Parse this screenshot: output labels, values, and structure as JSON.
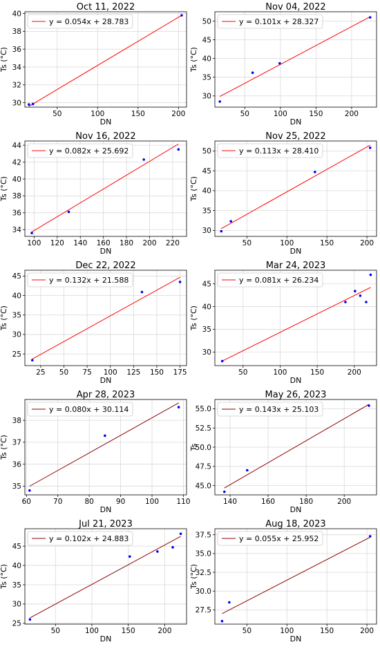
{
  "chart_data": [
    {
      "type": "scatter",
      "title": "Oct 11, 2022",
      "xlabel": "DN",
      "ylabel": "Ts (°C)",
      "xlim": [
        10,
        210
      ],
      "ylim": [
        29.5,
        40.2
      ],
      "xticks": [
        50,
        100,
        150,
        200
      ],
      "yticks": [
        30,
        32,
        34,
        36,
        38,
        40
      ],
      "points": [
        [
          15,
          29.8
        ],
        [
          20,
          29.85
        ],
        [
          204,
          39.8
        ]
      ],
      "fit": {
        "label": "y = 0.054x + 28.783",
        "slope": 0.054,
        "intercept": 28.783,
        "x_range": [
          15,
          204
        ],
        "color": "#ff0000"
      },
      "grid": true,
      "legend": "top-left"
    },
    {
      "type": "scatter",
      "title": "Nov 04, 2022",
      "xlabel": "DN",
      "ylabel": "Ts (°C)",
      "xlim": [
        8,
        235
      ],
      "ylim": [
        27,
        52.5
      ],
      "xticks": [
        50,
        100,
        150,
        200
      ],
      "yticks": [
        30,
        35,
        40,
        45,
        50
      ],
      "points": [
        [
          15,
          28.5
        ],
        [
          61,
          36.2
        ],
        [
          99,
          38.7
        ],
        [
          226,
          51.0
        ]
      ],
      "fit": {
        "label": "y = 0.101x + 28.327",
        "slope": 0.101,
        "intercept": 28.327,
        "x_range": [
          15,
          226
        ],
        "color": "#ff0000"
      },
      "grid": true,
      "legend": "top-left"
    },
    {
      "type": "scatter",
      "title": "Nov 16, 2022",
      "xlabel": "DN",
      "ylabel": "Ts (°C)",
      "xlim": [
        92,
        232
      ],
      "ylim": [
        33.2,
        44.5
      ],
      "xticks": [
        100,
        120,
        140,
        160,
        180,
        200,
        220
      ],
      "yticks": [
        34,
        36,
        38,
        40,
        42,
        44
      ],
      "points": [
        [
          98,
          33.6
        ],
        [
          130,
          36.1
        ],
        [
          195,
          42.3
        ],
        [
          225,
          43.5
        ]
      ],
      "fit": {
        "label": "y = 0.082x + 25.692",
        "slope": 0.082,
        "intercept": 25.692,
        "x_range": [
          98,
          225
        ],
        "color": "#ff0000"
      },
      "grid": true,
      "legend": "top-left"
    },
    {
      "type": "scatter",
      "title": "Nov 25, 2022",
      "xlabel": "DN",
      "ylabel": "Ts (°C)",
      "xlim": [
        10,
        212
      ],
      "ylim": [
        28.5,
        52.5
      ],
      "xticks": [
        50,
        100,
        150,
        200
      ],
      "yticks": [
        30,
        35,
        40,
        45,
        50
      ],
      "points": [
        [
          18,
          29.8
        ],
        [
          30,
          32.3
        ],
        [
          135,
          44.7
        ],
        [
          204,
          50.8
        ]
      ],
      "fit": {
        "label": "y = 0.113x + 28.410",
        "slope": 0.113,
        "intercept": 28.41,
        "x_range": [
          18,
          204
        ],
        "color": "#ff0000"
      },
      "grid": true,
      "legend": "top-left"
    },
    {
      "type": "scatter",
      "title": "Dec 22, 2022",
      "xlabel": "DN",
      "ylabel": "Ts (°C)",
      "xlim": [
        8,
        182
      ],
      "ylim": [
        22,
        46.5
      ],
      "xticks": [
        25,
        50,
        75,
        100,
        125,
        150,
        175
      ],
      "yticks": [
        25,
        30,
        35,
        40,
        45
      ],
      "points": [
        [
          16,
          23.4
        ],
        [
          134,
          40.9
        ],
        [
          175,
          43.5
        ]
      ],
      "fit": {
        "label": "y = 0.132x + 21.588",
        "slope": 0.132,
        "intercept": 21.588,
        "x_range": [
          16,
          175
        ],
        "color": "#ff0000"
      },
      "grid": true,
      "legend": "top-left"
    },
    {
      "type": "scatter",
      "title": "Mar 24, 2023",
      "xlabel": "DN",
      "ylabel": "Ts (°C)",
      "xlim": [
        12,
        230
      ],
      "ylim": [
        27,
        48
      ],
      "xticks": [
        50,
        100,
        150,
        200
      ],
      "yticks": [
        30,
        35,
        40,
        45
      ],
      "points": [
        [
          22,
          28.0
        ],
        [
          188,
          41.0
        ],
        [
          201,
          43.4
        ],
        [
          208,
          42.4
        ],
        [
          216,
          41.0
        ],
        [
          222,
          47.0
        ]
      ],
      "fit": {
        "label": "y = 0.081x + 26.234",
        "slope": 0.081,
        "intercept": 26.234,
        "x_range": [
          22,
          222
        ],
        "color": "#ff0000"
      },
      "grid": true,
      "legend": "top-left"
    },
    {
      "type": "scatter",
      "title": "Apr 28, 2023",
      "xlabel": "DN",
      "ylabel": "Ts (°C)",
      "xlim": [
        59.5,
        111
      ],
      "ylim": [
        34.6,
        38.95
      ],
      "xticks": [
        60,
        70,
        80,
        90,
        100,
        110
      ],
      "yticks": [
        35,
        36,
        37,
        38
      ],
      "points": [
        [
          61,
          34.8
        ],
        [
          85,
          37.3
        ],
        [
          108.5,
          38.6
        ]
      ],
      "fit": {
        "label": "y = 0.080x + 30.114",
        "slope": 0.08,
        "intercept": 30.114,
        "x_range": [
          61,
          108.5
        ],
        "color": "#8b0000"
      },
      "grid": true,
      "legend": "top-left"
    },
    {
      "type": "scatter",
      "title": "May 26, 2023",
      "xlabel": "DN",
      "ylabel": "Ts",
      "xlim": [
        132,
        217
      ],
      "ylim": [
        43.8,
        56.2
      ],
      "xticks": [
        140,
        160,
        180,
        200
      ],
      "yticks": [
        45.0,
        47.5,
        50.0,
        52.5,
        55.0
      ],
      "yticklabels": [
        "45.0",
        "47.5",
        "50.0",
        "52.5",
        "55.0"
      ],
      "points": [
        [
          137,
          44.2
        ],
        [
          149,
          47.0
        ],
        [
          213,
          55.4
        ]
      ],
      "fit": {
        "label": "y = 0.143x + 25.103",
        "slope": 0.143,
        "intercept": 25.103,
        "x_range": [
          137,
          213
        ],
        "color": "#8b0000"
      },
      "grid": true,
      "legend": "top-left"
    },
    {
      "type": "scatter",
      "title": "Jul 21, 2023",
      "xlabel": "DN",
      "ylabel": "Ts (°C)",
      "xlim": [
        8,
        230
      ],
      "ylim": [
        24.8,
        49.5
      ],
      "xticks": [
        50,
        100,
        150,
        200
      ],
      "yticks": [
        25,
        30,
        35,
        40,
        45
      ],
      "points": [
        [
          15,
          26.0
        ],
        [
          152,
          42.3
        ],
        [
          190,
          43.6
        ],
        [
          211,
          44.7
        ],
        [
          222,
          48.2
        ]
      ],
      "fit": {
        "label": "y = 0.102x + 24.883",
        "slope": 0.102,
        "intercept": 24.883,
        "x_range": [
          15,
          222
        ],
        "color": "#8b0000"
      },
      "grid": true,
      "legend": "top-left"
    },
    {
      "type": "scatter",
      "title": "Aug 18, 2023",
      "xlabel": "DN",
      "ylabel": "Ts (°C)",
      "xlim": [
        10,
        212
      ],
      "ylim": [
        25.6,
        38.3
      ],
      "xticks": [
        50,
        100,
        150,
        200
      ],
      "yticks": [
        27.5,
        30.0,
        32.5,
        35.0,
        37.5
      ],
      "yticklabels": [
        "27.5",
        "30.0",
        "32.5",
        "35.0",
        "37.5"
      ],
      "points": [
        [
          19,
          26.0
        ],
        [
          28,
          28.5
        ],
        [
          204,
          37.3
        ]
      ],
      "fit": {
        "label": "y = 0.055x + 25.952",
        "slope": 0.055,
        "intercept": 25.952,
        "x_range": [
          19,
          204
        ],
        "color": "#8b0000"
      },
      "grid": true,
      "legend": "top-left"
    }
  ]
}
